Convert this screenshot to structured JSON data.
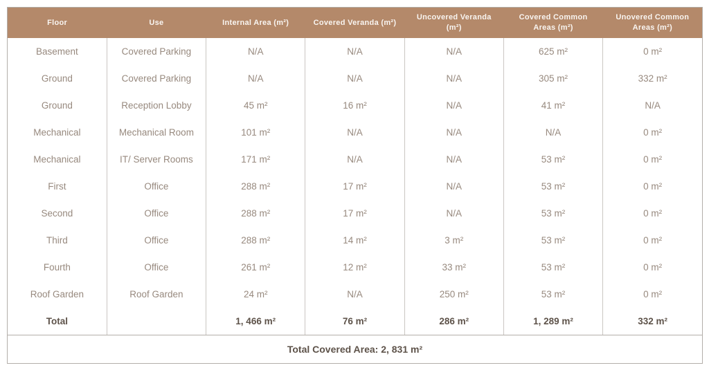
{
  "table": {
    "columns": [
      "Floor",
      "Use",
      "Internal Area (m²)",
      "Covered Veranda (m²)",
      "Uncovered Veranda (m²)",
      "Covered Common Areas (m²)",
      "Unovered Common Areas (m²)"
    ],
    "rows": [
      [
        "Basement",
        "Covered Parking",
        "N/A",
        "N/A",
        "N/A",
        "625 m²",
        "0 m²"
      ],
      [
        "Ground",
        "Covered Parking",
        "N/A",
        "N/A",
        "N/A",
        "305 m²",
        "332 m²"
      ],
      [
        "Ground",
        "Reception Lobby",
        "45 m²",
        "16 m²",
        "N/A",
        "41 m²",
        "N/A"
      ],
      [
        "Mechanical",
        "Mechanical Room",
        "101 m²",
        "N/A",
        "N/A",
        "N/A",
        "0 m²"
      ],
      [
        "Mechanical",
        "IT/ Server Rooms",
        "171 m²",
        "N/A",
        "N/A",
        "53 m²",
        "0 m²"
      ],
      [
        "First",
        "Office",
        "288 m²",
        "17 m²",
        "N/A",
        "53 m²",
        "0 m²"
      ],
      [
        "Second",
        "Office",
        "288 m²",
        "17 m²",
        "N/A",
        "53 m²",
        "0 m²"
      ],
      [
        "Third",
        "Office",
        "288 m²",
        "14 m²",
        "3 m²",
        "53 m²",
        "0 m²"
      ],
      [
        "Fourth",
        "Office",
        "261 m²",
        "12 m²",
        "33 m²",
        "53 m²",
        "0 m²"
      ],
      [
        "Roof Garden",
        "Roof Garden",
        "24 m²",
        "N/A",
        "250 m²",
        "53 m²",
        "0 m²"
      ]
    ],
    "total_row": [
      "Total",
      "",
      "1, 466 m²",
      "76 m²",
      "286 m²",
      "1, 289 m²",
      "332 m²"
    ],
    "footer": "Total Covered Area: 2, 831 m²",
    "colors": {
      "header_bg": "#b4896a",
      "header_text": "#f9f5f1",
      "body_text": "#97897e",
      "bold_text": "#5d5249",
      "column_separator": "#cac6c2",
      "outer_border": "#b3aea9"
    }
  }
}
